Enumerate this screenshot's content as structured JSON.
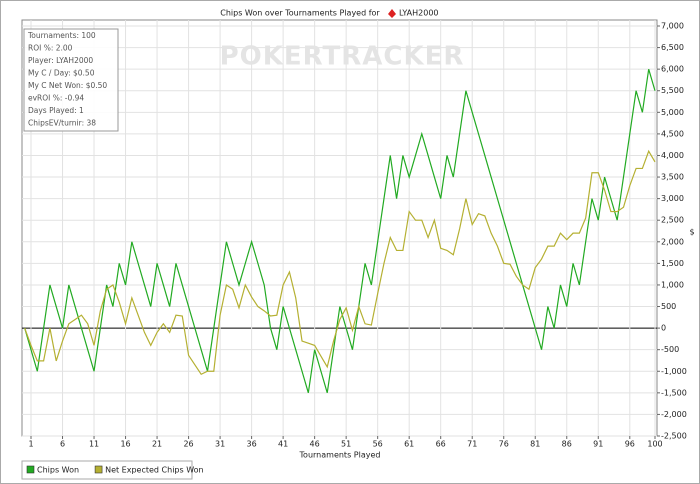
{
  "chart_data": {
    "type": "line",
    "title": "Chips Won over Tournaments Played for",
    "title_player": "LYAH2000",
    "watermark": "POKERTRACKER",
    "xlabel": "Tournaments Played",
    "ylabel": "$",
    "stats": [
      "Tournaments: 100",
      "ROI %: 2.00",
      "Player: LYAH2000",
      "My C / Day: $0.50",
      "My C Net Won: $0.50",
      "evROI %: -0.94",
      "Days Played: 1",
      "ChipsEV/turnir: 38"
    ],
    "x": [
      0,
      1,
      2,
      3,
      4,
      5,
      6,
      7,
      8,
      9,
      10,
      11,
      12,
      13,
      14,
      15,
      16,
      17,
      18,
      19,
      20,
      21,
      22,
      23,
      24,
      25,
      26,
      27,
      28,
      29,
      30,
      31,
      32,
      33,
      34,
      35,
      36,
      37,
      38,
      39,
      40,
      41,
      42,
      43,
      44,
      45,
      46,
      47,
      48,
      49,
      50,
      51,
      52,
      53,
      54,
      55,
      56,
      57,
      58,
      59,
      60,
      61,
      62,
      63,
      64,
      65,
      66,
      67,
      68,
      69,
      70,
      71,
      72,
      73,
      74,
      75,
      76,
      77,
      78,
      79,
      80,
      81,
      82,
      83,
      84,
      85,
      86,
      87,
      88,
      89,
      90,
      91,
      92,
      93,
      94,
      95,
      96,
      97,
      98,
      99,
      100
    ],
    "series": [
      {
        "name": "Chips Won",
        "color": "#22aa22",
        "values": [
          0,
          -500,
          -1000,
          0,
          1000,
          500,
          0,
          1000,
          500,
          0,
          -500,
          -1000,
          0,
          1000,
          500,
          1500,
          1000,
          2000,
          1500,
          1000,
          500,
          1500,
          1000,
          500,
          1500,
          1000,
          500,
          0,
          -500,
          -1000,
          0,
          1000,
          2000,
          1500,
          1000,
          1500,
          2000,
          1500,
          1000,
          0,
          -500,
          500,
          0,
          -500,
          -1000,
          -1500,
          -500,
          -1000,
          -1500,
          -500,
          500,
          0,
          -500,
          500,
          1500,
          1000,
          2000,
          3000,
          4000,
          3000,
          4000,
          3500,
          4000,
          4500,
          4000,
          3500,
          3000,
          4000,
          3500,
          4500,
          5500,
          5000,
          4500,
          4000,
          3500,
          3000,
          2500,
          2000,
          1500,
          1000,
          500,
          0,
          -500,
          500,
          0,
          1000,
          500,
          1500,
          1000,
          2000,
          3000,
          2500,
          3500,
          3000,
          2500,
          3500,
          4500,
          5500,
          5000,
          6000,
          5500
        ]
      },
      {
        "name": "Net Expected Chips Won",
        "color": "#b5b032",
        "values": [
          0,
          -400,
          -760,
          -760,
          0,
          -760,
          -300,
          100,
          200,
          300,
          100,
          -400,
          400,
          900,
          1000,
          600,
          100,
          700,
          300,
          -100,
          -400,
          -100,
          100,
          -100,
          300,
          280,
          -630,
          -850,
          -1070,
          -1000,
          -1000,
          300,
          1000,
          900,
          470,
          1000,
          720,
          500,
          400,
          280,
          300,
          1000,
          1300,
          700,
          -300,
          -350,
          -400,
          -650,
          -900,
          -300,
          200,
          470,
          -50,
          500,
          100,
          70,
          800,
          1500,
          2100,
          1800,
          1800,
          2700,
          2500,
          2500,
          2100,
          2500,
          1850,
          1800,
          1700,
          2300,
          3000,
          2400,
          2650,
          2600,
          2200,
          1900,
          1500,
          1480,
          1200,
          1000,
          900,
          1400,
          1600,
          1900,
          1900,
          2200,
          2050,
          2200,
          2200,
          2550,
          3600,
          3600,
          3200,
          2700,
          2700,
          2800,
          3300,
          3700,
          3700,
          4100,
          3850
        ]
      }
    ],
    "xlim": [
      0,
      100
    ],
    "xticks": [
      1,
      6,
      11,
      16,
      21,
      26,
      31,
      36,
      41,
      46,
      51,
      56,
      61,
      66,
      71,
      76,
      81,
      86,
      91,
      96,
      100
    ],
    "ylim": [
      -2500,
      7000
    ],
    "yticks": [
      {
        "value": -2500,
        "label": "-2,500"
      },
      {
        "value": -2000,
        "label": "-2,000"
      },
      {
        "value": -1500,
        "label": "-1,500"
      },
      {
        "value": -1000,
        "label": "-1,000"
      },
      -500,
      0,
      500,
      {
        "value": 1000,
        "label": "1,000"
      },
      {
        "value": 1500,
        "label": "1,500"
      },
      {
        "value": 2000,
        "label": "2,000"
      },
      {
        "value": 2500,
        "label": "2,500"
      },
      {
        "value": 3000,
        "label": "3,000"
      },
      {
        "value": 3500,
        "label": "3,500"
      },
      {
        "value": 4000,
        "label": "4,000"
      },
      {
        "value": 4500,
        "label": "4,500"
      },
      {
        "value": 5000,
        "label": "5,000"
      },
      {
        "value": 5500,
        "label": "5,500"
      },
      {
        "value": 6000,
        "label": "6,000"
      },
      {
        "value": 6500,
        "label": "6,500"
      },
      {
        "value": 7000,
        "label": "7,000"
      }
    ],
    "grid": true
  }
}
